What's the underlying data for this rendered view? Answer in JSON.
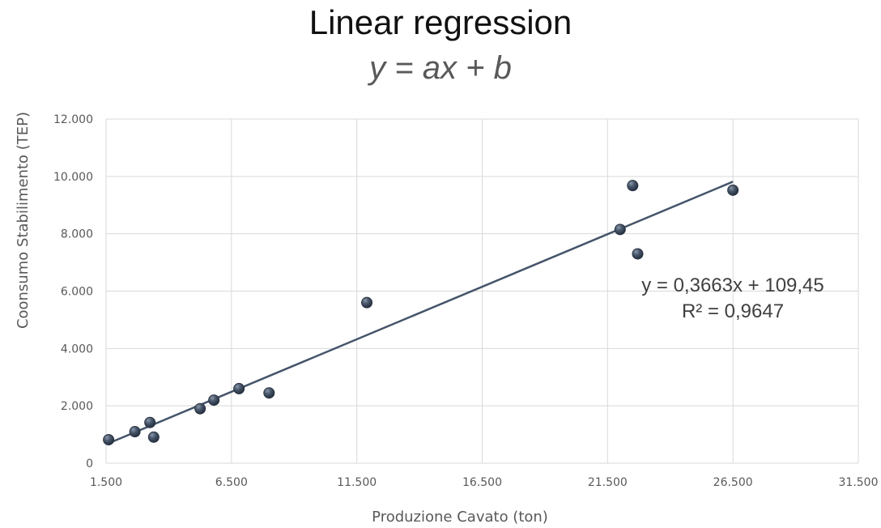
{
  "chart_data": {
    "type": "scatter",
    "title": "Linear regression",
    "subtitle": "y = ax + b",
    "xlabel": "Produzione Cavato (ton)",
    "ylabel": "Coonsumo Stabilimento (TEP)",
    "xlim": [
      1500,
      31500
    ],
    "ylim": [
      0,
      12000
    ],
    "x_ticks": [
      "1.500",
      "6.500",
      "11.500",
      "16.500",
      "21.500",
      "26.500",
      "31.500"
    ],
    "x_tick_values": [
      1500,
      6500,
      11500,
      16500,
      21500,
      26500,
      31500
    ],
    "y_ticks": [
      "0",
      "2.000",
      "4.000",
      "6.000",
      "8.000",
      "10.000",
      "12.000"
    ],
    "y_tick_values": [
      0,
      2000,
      4000,
      6000,
      8000,
      10000,
      12000
    ],
    "grid": true,
    "points": [
      {
        "x": 1600,
        "y": 820
      },
      {
        "x": 2650,
        "y": 1100
      },
      {
        "x": 3250,
        "y": 1420
      },
      {
        "x": 3400,
        "y": 910
      },
      {
        "x": 5250,
        "y": 1900
      },
      {
        "x": 5800,
        "y": 2200
      },
      {
        "x": 6800,
        "y": 2600
      },
      {
        "x": 8000,
        "y": 2450
      },
      {
        "x": 11900,
        "y": 5600
      },
      {
        "x": 22000,
        "y": 8150
      },
      {
        "x": 22500,
        "y": 9680
      },
      {
        "x": 22700,
        "y": 7300
      },
      {
        "x": 26500,
        "y": 9520
      }
    ],
    "trendline": {
      "slope": 0.3663,
      "intercept": 109.45,
      "x_range": [
        1600,
        26500
      ],
      "equation_label": "y = 0,3663x + 109,45",
      "r2_label": "R² = 0,9647"
    },
    "colors": {
      "point_fill": "#3d4a5c",
      "point_stroke": "#2a3342",
      "trendline": "#44546a",
      "grid": "#d9d9d9"
    }
  }
}
